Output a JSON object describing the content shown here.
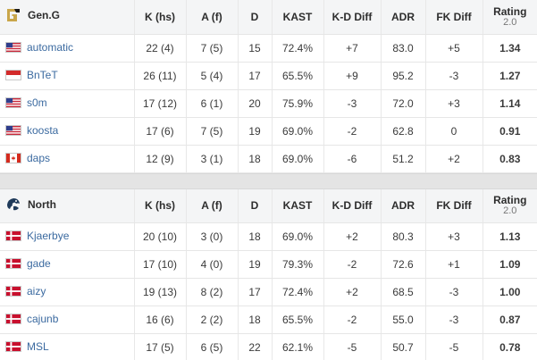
{
  "columns": {
    "k": "K (hs)",
    "a": "A (f)",
    "d": "D",
    "kast": "KAST",
    "kd": "K-D Diff",
    "adr": "ADR",
    "fk": "FK Diff",
    "rating": "Rating",
    "rating_sub": "2.0"
  },
  "teams": [
    {
      "name": "Gen.G",
      "logo_icon": "geng-logo-icon",
      "players": [
        {
          "name": "automatic",
          "flag": "us",
          "k": "22 (4)",
          "a": "7 (5)",
          "d": "15",
          "kast": "72.4%",
          "kd": "+7",
          "adr": "83.0",
          "fk": "+5",
          "rating": "1.34"
        },
        {
          "name": "BnTeT",
          "flag": "id",
          "k": "26 (11)",
          "a": "5 (4)",
          "d": "17",
          "kast": "65.5%",
          "kd": "+9",
          "adr": "95.2",
          "fk": "-3",
          "rating": "1.27"
        },
        {
          "name": "s0m",
          "flag": "us",
          "k": "17 (12)",
          "a": "6 (1)",
          "d": "20",
          "kast": "75.9%",
          "kd": "-3",
          "adr": "72.0",
          "fk": "+3",
          "rating": "1.14"
        },
        {
          "name": "koosta",
          "flag": "us",
          "k": "17 (6)",
          "a": "7 (5)",
          "d": "19",
          "kast": "69.0%",
          "kd": "-2",
          "adr": "62.8",
          "fk": "0",
          "rating": "0.91"
        },
        {
          "name": "daps",
          "flag": "ca",
          "k": "12 (9)",
          "a": "3 (1)",
          "d": "18",
          "kast": "69.0%",
          "kd": "-6",
          "adr": "51.2",
          "fk": "+2",
          "rating": "0.83"
        }
      ]
    },
    {
      "name": "North",
      "logo_icon": "north-wolf-logo-icon",
      "players": [
        {
          "name": "Kjaerbye",
          "flag": "dk",
          "k": "20 (10)",
          "a": "3 (0)",
          "d": "18",
          "kast": "69.0%",
          "kd": "+2",
          "adr": "80.3",
          "fk": "+3",
          "rating": "1.13"
        },
        {
          "name": "gade",
          "flag": "dk",
          "k": "17 (10)",
          "a": "4 (0)",
          "d": "19",
          "kast": "79.3%",
          "kd": "-2",
          "adr": "72.6",
          "fk": "+1",
          "rating": "1.09"
        },
        {
          "name": "aizy",
          "flag": "dk",
          "k": "19 (13)",
          "a": "8 (2)",
          "d": "17",
          "kast": "72.4%",
          "kd": "+2",
          "adr": "68.5",
          "fk": "-3",
          "rating": "1.00"
        },
        {
          "name": "cajunb",
          "flag": "dk",
          "k": "16 (6)",
          "a": "2 (2)",
          "d": "18",
          "kast": "65.5%",
          "kd": "-2",
          "adr": "55.0",
          "fk": "-3",
          "rating": "0.87"
        },
        {
          "name": "MSL",
          "flag": "dk",
          "k": "17 (5)",
          "a": "6 (5)",
          "d": "22",
          "kast": "62.1%",
          "kd": "-5",
          "adr": "50.7",
          "fk": "-5",
          "rating": "0.78"
        }
      ]
    }
  ],
  "colors": {
    "positive": "#3aa53a",
    "negative": "#d9534f",
    "link": "#3b6aa0",
    "header_bg": "#f4f5f6"
  }
}
